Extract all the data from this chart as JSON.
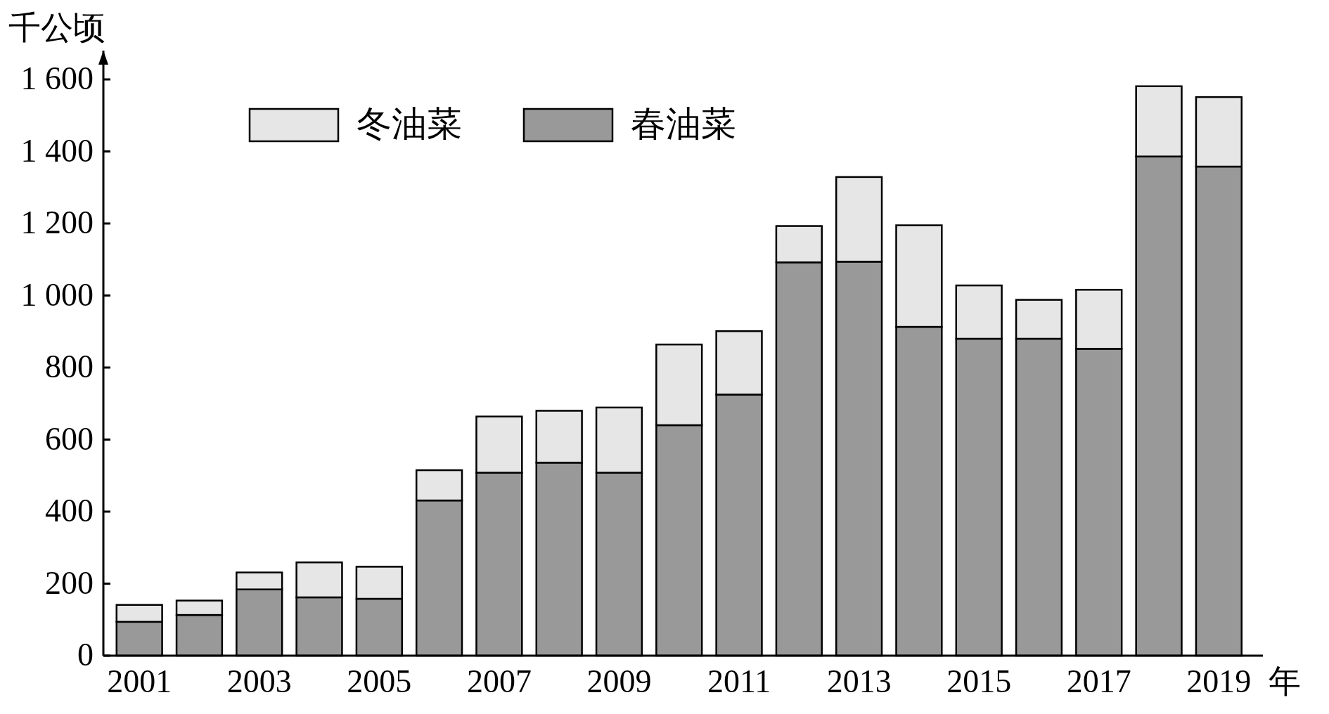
{
  "chart_data": {
    "type": "bar",
    "stacked": true,
    "xlabel": "年",
    "ylabel": "千公顷",
    "categories": [
      "2001",
      null,
      "2003",
      null,
      "2005",
      null,
      "2007",
      null,
      "2009",
      null,
      "2011",
      null,
      "2013",
      null,
      "2015",
      null,
      "2017",
      null,
      "2019"
    ],
    "series": [
      {
        "name": "春油菜",
        "color": "#999999",
        "values": [
          94,
          113,
          184,
          162,
          158,
          431,
          508,
          536,
          508,
          640,
          725,
          1092,
          1094,
          913,
          880,
          880,
          852,
          1386,
          1358
        ]
      },
      {
        "name": "冬油菜",
        "color": "#e6e6e6",
        "values": [
          47,
          40,
          47,
          97,
          89,
          84,
          156,
          144,
          181,
          224,
          176,
          101,
          235,
          282,
          148,
          108,
          164,
          195,
          193
        ]
      }
    ],
    "ylim": [
      0,
      1680
    ],
    "yticks": [
      0,
      200,
      400,
      600,
      800,
      {
        "value": 1000,
        "label": "1 000"
      },
      {
        "value": 1200,
        "label": "1 200"
      },
      {
        "value": 1400,
        "label": "1 400"
      },
      {
        "value": 1600,
        "label": "1 600"
      }
    ],
    "legend": "top left"
  }
}
